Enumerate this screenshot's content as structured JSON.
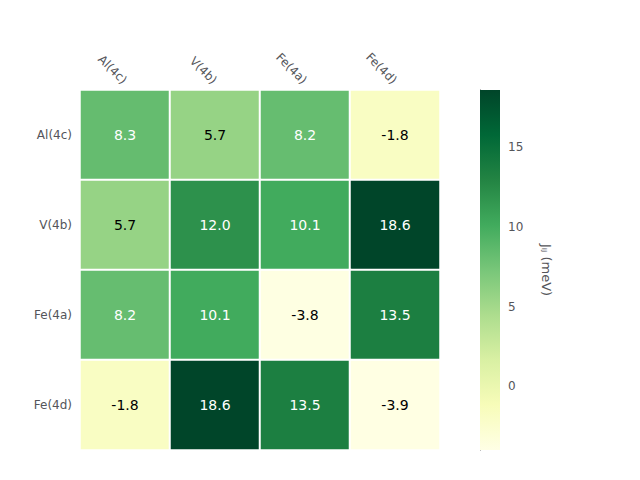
{
  "chart_data": {
    "type": "heatmap",
    "categories": [
      "Al(4c)",
      "V(4b)",
      "Fe(4a)",
      "Fe(4d)"
    ],
    "values": [
      [
        8.3,
        5.7,
        8.2,
        -1.8
      ],
      [
        5.7,
        12.0,
        10.1,
        18.6
      ],
      [
        8.2,
        10.1,
        -3.8,
        13.5
      ],
      [
        -1.8,
        18.6,
        13.5,
        -3.9
      ]
    ],
    "value_labels": [
      [
        "8.3",
        "5.7",
        "8.2",
        "-1.8"
      ],
      [
        "5.7",
        "12.0",
        "10.1",
        "18.6"
      ],
      [
        "8.2",
        "10.1",
        "-3.8",
        "13.5"
      ],
      [
        "-1.8",
        "18.6",
        "13.5",
        "-3.9"
      ]
    ],
    "data_labels": true,
    "colorbar_label": "Jᵢⱼ (meV)",
    "colorbar_range": [
      -4,
      18.6
    ],
    "colorbar_ticks": [
      0,
      5,
      10,
      15
    ]
  }
}
